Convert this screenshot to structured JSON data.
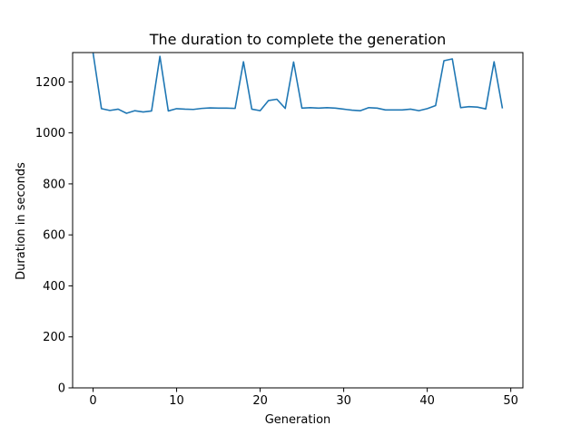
{
  "chart_data": {
    "type": "line",
    "title": "The duration to complete the generation",
    "xlabel": "Generation",
    "ylabel": "Duration in seconds",
    "xlim": [
      -2.45,
      51.45
    ],
    "ylim": [
      0,
      1315
    ],
    "xticks": [
      0,
      10,
      20,
      30,
      40,
      50
    ],
    "yticks": [
      0,
      200,
      400,
      600,
      800,
      1000,
      1200
    ],
    "grid": false,
    "series": [
      {
        "color": "#1f77b4",
        "x": [
          0,
          1,
          2,
          3,
          4,
          5,
          6,
          7,
          8,
          9,
          10,
          11,
          12,
          13,
          14,
          15,
          16,
          17,
          18,
          19,
          20,
          21,
          22,
          23,
          24,
          25,
          26,
          27,
          28,
          29,
          30,
          31,
          32,
          33,
          34,
          35,
          36,
          37,
          38,
          39,
          40,
          41,
          42,
          43,
          44,
          45,
          46,
          47,
          48,
          49
        ],
        "y": [
          1313,
          1095,
          1088,
          1093,
          1077,
          1087,
          1082,
          1086,
          1300,
          1086,
          1095,
          1093,
          1092,
          1096,
          1098,
          1097,
          1097,
          1096,
          1279,
          1093,
          1087,
          1127,
          1132,
          1096,
          1278,
          1097,
          1099,
          1097,
          1099,
          1097,
          1093,
          1089,
          1087,
          1099,
          1097,
          1090,
          1090,
          1090,
          1093,
          1087,
          1095,
          1107,
          1283,
          1290,
          1099,
          1103,
          1101,
          1094,
          1279,
          1096
        ]
      }
    ]
  }
}
